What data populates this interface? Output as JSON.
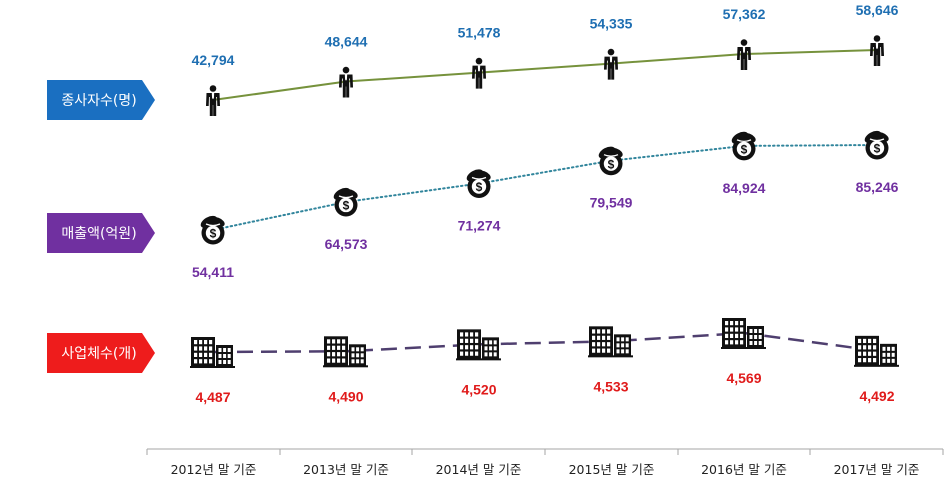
{
  "chart_data": {
    "type": "line",
    "categories": [
      "2012년 말 기준",
      "2013년 말 기준",
      "2014년 말 기준",
      "2015년 말 기준",
      "2016년 말 기준",
      "2017년 말 기준"
    ],
    "series": [
      {
        "key": "employees",
        "name": "종사자수(명)",
        "values": [
          42794,
          48644,
          51478,
          54335,
          57362,
          58646
        ],
        "labels": [
          "42,794",
          "48,644",
          "51,478",
          "54,335",
          "57,362",
          "58,646"
        ],
        "tag_color": "#1a6fc1",
        "value_color": "#1f6fb2",
        "line_color": "#76923c",
        "line_style": "solid",
        "icon": "person-icon"
      },
      {
        "key": "sales",
        "name": "매출액(억원)",
        "values": [
          54411,
          64573,
          71274,
          79549,
          84924,
          85246
        ],
        "labels": [
          "54,411",
          "64,573",
          "71,274",
          "79,549",
          "84,924",
          "85,246"
        ],
        "tag_color": "#7030a0",
        "value_color": "#7030a0",
        "line_color": "#31859c",
        "line_style": "dotted",
        "icon": "money-bag-icon"
      },
      {
        "key": "companies",
        "name": "사업체수(개)",
        "values": [
          4487,
          4490,
          4520,
          4533,
          4569,
          4492
        ],
        "labels": [
          "4,487",
          "4,490",
          "4,520",
          "4,533",
          "4,569",
          "4,492"
        ],
        "tag_color": "#ee1c1c",
        "value_color": "#e01b1b",
        "line_color": "#4f3f6f",
        "line_style": "dashed",
        "icon": "building-icon"
      }
    ],
    "title": "",
    "xlabel": "",
    "ylabel": ""
  }
}
